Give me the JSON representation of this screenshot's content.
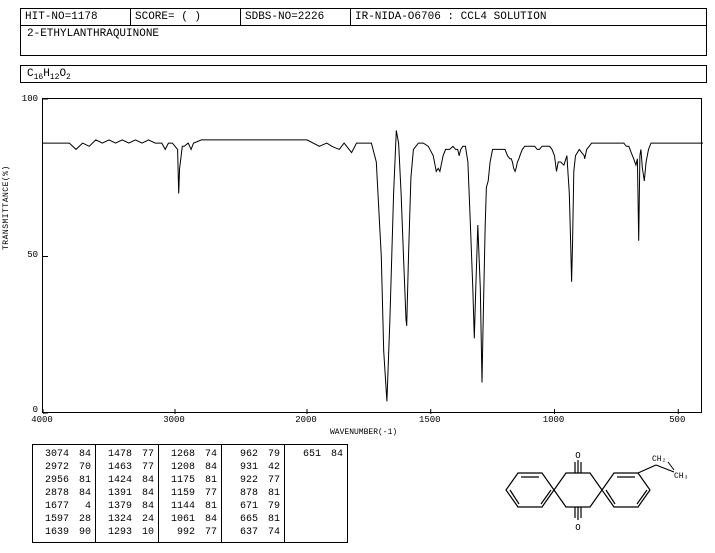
{
  "header": {
    "hit_no": "HIT-NO=1178",
    "score": "SCORE=   (   )",
    "sdbs_no": "SDBS-NO=2226",
    "ir_info": "IR-NIDA-O6706 : CCL4 SOLUTION"
  },
  "compound_name": "2-ETHYLANTHRAQUINONE",
  "formula": {
    "c": "C",
    "c_n": "16",
    "h": "H",
    "h_n": "12",
    "o": "O",
    "o_n": "2"
  },
  "chart": {
    "type": "line",
    "xlabel": "WAVENUMBER(-1)",
    "ylabel": "TRANSMITTANCE(%)",
    "xlim": [
      4000,
      400
    ],
    "ylim": [
      0,
      100
    ],
    "xticks": [
      4000,
      3000,
      2000,
      1500,
      1000,
      500
    ],
    "yticks": [
      0,
      50,
      100
    ],
    "line_color": "#000000",
    "background_color": "#ffffff",
    "border_color": "#000000",
    "line_width": 1,
    "spectrum": [
      [
        4000,
        86
      ],
      [
        3900,
        86
      ],
      [
        3800,
        86
      ],
      [
        3750,
        84
      ],
      [
        3700,
        86
      ],
      [
        3650,
        85
      ],
      [
        3600,
        87
      ],
      [
        3550,
        86
      ],
      [
        3500,
        87
      ],
      [
        3450,
        86
      ],
      [
        3400,
        87
      ],
      [
        3350,
        86
      ],
      [
        3300,
        87
      ],
      [
        3250,
        86
      ],
      [
        3200,
        87
      ],
      [
        3150,
        86
      ],
      [
        3100,
        86
      ],
      [
        3074,
        84
      ],
      [
        3050,
        86
      ],
      [
        3020,
        86
      ],
      [
        3000,
        85
      ],
      [
        2980,
        84
      ],
      [
        2972,
        70
      ],
      [
        2965,
        78
      ],
      [
        2956,
        81
      ],
      [
        2945,
        85
      ],
      [
        2930,
        85
      ],
      [
        2900,
        86
      ],
      [
        2878,
        84
      ],
      [
        2860,
        86
      ],
      [
        2800,
        87
      ],
      [
        2700,
        87
      ],
      [
        2600,
        87
      ],
      [
        2500,
        87
      ],
      [
        2400,
        87
      ],
      [
        2300,
        87
      ],
      [
        2200,
        87
      ],
      [
        2100,
        87
      ],
      [
        2050,
        87
      ],
      [
        2000,
        87
      ],
      [
        1950,
        85
      ],
      [
        1920,
        86
      ],
      [
        1900,
        85
      ],
      [
        1870,
        84
      ],
      [
        1850,
        86
      ],
      [
        1820,
        83
      ],
      [
        1800,
        86
      ],
      [
        1780,
        86
      ],
      [
        1760,
        86
      ],
      [
        1740,
        86
      ],
      [
        1720,
        80
      ],
      [
        1700,
        50
      ],
      [
        1690,
        20
      ],
      [
        1677,
        4
      ],
      [
        1665,
        30
      ],
      [
        1650,
        70
      ],
      [
        1639,
        90
      ],
      [
        1630,
        86
      ],
      [
        1620,
        70
      ],
      [
        1610,
        50
      ],
      [
        1600,
        30
      ],
      [
        1597,
        28
      ],
      [
        1590,
        50
      ],
      [
        1580,
        75
      ],
      [
        1570,
        84
      ],
      [
        1550,
        86
      ],
      [
        1530,
        86
      ],
      [
        1510,
        85
      ],
      [
        1490,
        82
      ],
      [
        1480,
        78
      ],
      [
        1478,
        77
      ],
      [
        1470,
        78
      ],
      [
        1463,
        77
      ],
      [
        1450,
        82
      ],
      [
        1440,
        84
      ],
      [
        1430,
        84
      ],
      [
        1424,
        84
      ],
      [
        1410,
        85
      ],
      [
        1400,
        84
      ],
      [
        1391,
        84
      ],
      [
        1385,
        82
      ],
      [
        1379,
        84
      ],
      [
        1370,
        85
      ],
      [
        1360,
        85
      ],
      [
        1350,
        80
      ],
      [
        1340,
        60
      ],
      [
        1330,
        40
      ],
      [
        1324,
        24
      ],
      [
        1318,
        40
      ],
      [
        1310,
        60
      ],
      [
        1300,
        40
      ],
      [
        1293,
        10
      ],
      [
        1288,
        30
      ],
      [
        1280,
        60
      ],
      [
        1275,
        72
      ],
      [
        1268,
        74
      ],
      [
        1260,
        80
      ],
      [
        1250,
        84
      ],
      [
        1240,
        84
      ],
      [
        1230,
        84
      ],
      [
        1220,
        84
      ],
      [
        1210,
        84
      ],
      [
        1208,
        84
      ],
      [
        1200,
        84
      ],
      [
        1190,
        82
      ],
      [
        1180,
        81
      ],
      [
        1175,
        81
      ],
      [
        1170,
        80
      ],
      [
        1165,
        78
      ],
      [
        1159,
        77
      ],
      [
        1155,
        78
      ],
      [
        1150,
        80
      ],
      [
        1144,
        81
      ],
      [
        1140,
        82
      ],
      [
        1130,
        84
      ],
      [
        1120,
        85
      ],
      [
        1110,
        85
      ],
      [
        1100,
        85
      ],
      [
        1090,
        85
      ],
      [
        1080,
        85
      ],
      [
        1070,
        84
      ],
      [
        1061,
        84
      ],
      [
        1050,
        85
      ],
      [
        1040,
        85
      ],
      [
        1030,
        85
      ],
      [
        1020,
        85
      ],
      [
        1010,
        84
      ],
      [
        1000,
        82
      ],
      [
        992,
        77
      ],
      [
        985,
        80
      ],
      [
        975,
        80
      ],
      [
        962,
        79
      ],
      [
        950,
        82
      ],
      [
        940,
        70
      ],
      [
        935,
        55
      ],
      [
        931,
        42
      ],
      [
        927,
        55
      ],
      [
        922,
        77
      ],
      [
        915,
        82
      ],
      [
        900,
        84
      ],
      [
        890,
        83
      ],
      [
        880,
        82
      ],
      [
        878,
        81
      ],
      [
        870,
        84
      ],
      [
        860,
        85
      ],
      [
        850,
        86
      ],
      [
        840,
        86
      ],
      [
        830,
        86
      ],
      [
        820,
        86
      ],
      [
        810,
        86
      ],
      [
        800,
        86
      ],
      [
        790,
        86
      ],
      [
        780,
        86
      ],
      [
        770,
        86
      ],
      [
        760,
        86
      ],
      [
        750,
        86
      ],
      [
        740,
        86
      ],
      [
        730,
        86
      ],
      [
        720,
        86
      ],
      [
        710,
        85
      ],
      [
        700,
        85
      ],
      [
        690,
        83
      ],
      [
        680,
        81
      ],
      [
        671,
        79
      ],
      [
        665,
        81
      ],
      [
        660,
        55
      ],
      [
        655,
        82
      ],
      [
        651,
        84
      ],
      [
        645,
        78
      ],
      [
        637,
        74
      ],
      [
        630,
        80
      ],
      [
        620,
        84
      ],
      [
        610,
        86
      ],
      [
        600,
        86
      ],
      [
        580,
        86
      ],
      [
        560,
        86
      ],
      [
        540,
        86
      ],
      [
        520,
        86
      ],
      [
        500,
        86
      ],
      [
        480,
        86
      ],
      [
        460,
        86
      ],
      [
        440,
        86
      ],
      [
        420,
        86
      ],
      [
        400,
        86
      ]
    ]
  },
  "peak_table": {
    "columns": [
      [
        [
          3074,
          84
        ],
        [
          2972,
          70
        ],
        [
          2956,
          81
        ],
        [
          2878,
          84
        ],
        [
          1677,
          4
        ],
        [
          1597,
          28
        ],
        [
          1639,
          90
        ]
      ],
      [
        [
          1478,
          77
        ],
        [
          1463,
          77
        ],
        [
          1424,
          84
        ],
        [
          1391,
          84
        ],
        [
          1379,
          84
        ],
        [
          1324,
          24
        ],
        [
          1293,
          10
        ]
      ],
      [
        [
          1268,
          74
        ],
        [
          1208,
          84
        ],
        [
          1175,
          81
        ],
        [
          1159,
          77
        ],
        [
          1144,
          81
        ],
        [
          1061,
          84
        ],
        [
          992,
          77
        ]
      ],
      [
        [
          962,
          79
        ],
        [
          931,
          42
        ],
        [
          922,
          77
        ],
        [
          878,
          81
        ],
        [
          671,
          79
        ],
        [
          665,
          81
        ],
        [
          637,
          74
        ]
      ],
      [
        [
          651,
          84
        ]
      ]
    ]
  },
  "structure_label": "CH₂—CH₃"
}
